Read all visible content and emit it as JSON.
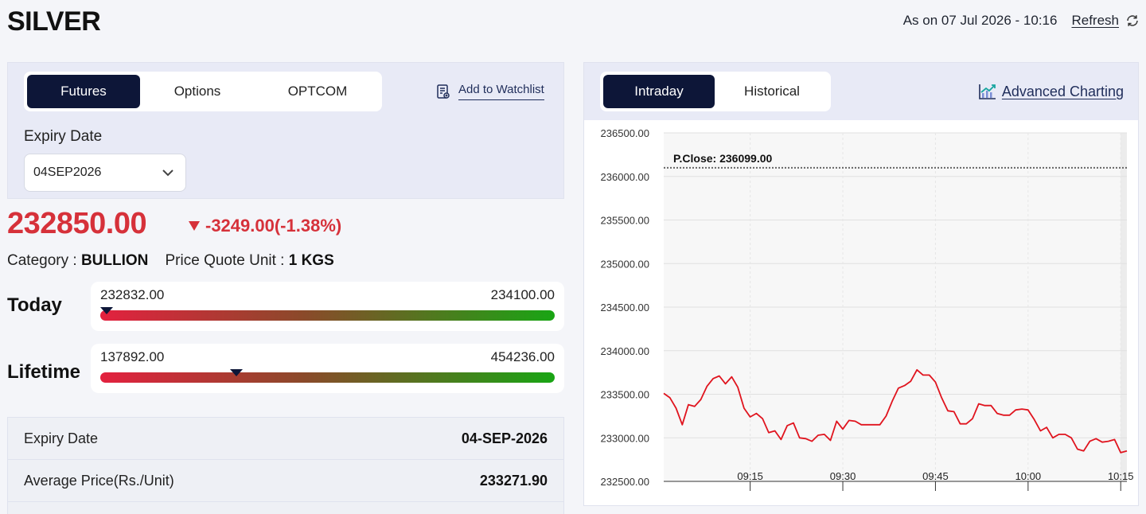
{
  "header": {
    "title": "SILVER",
    "as_on": "As on 07 Jul 2026 - 10:16",
    "refresh_label": "Refresh"
  },
  "contract": {
    "tabs": [
      {
        "label": "Futures",
        "active": true
      },
      {
        "label": "Options",
        "active": false
      },
      {
        "label": "OPTCOM",
        "active": false
      }
    ],
    "watchlist_label": "Add to Watchlist",
    "expiry_label": "Expiry Date",
    "expiry_value": "04SEP2026"
  },
  "quote": {
    "price": "232850.00",
    "change": "-3249.00(-1.38%)",
    "category_label": "Category :",
    "category_value": "BULLION",
    "unit_label": "Price Quote Unit :",
    "unit_value": "1 KGS"
  },
  "ranges": {
    "today": {
      "label": "Today",
      "low": "232832.00",
      "high": "234100.00",
      "position": 0.014
    },
    "lifetime": {
      "label": "Lifetime",
      "low": "137892.00",
      "high": "454236.00",
      "position": 0.299
    }
  },
  "details": [
    {
      "label": "Expiry Date",
      "value": "04-SEP-2026"
    },
    {
      "label": "Average Price(Rs./Unit)",
      "value": "233271.90"
    }
  ],
  "chart_panel": {
    "tabs": [
      {
        "label": "Intraday",
        "active": true
      },
      {
        "label": "Historical",
        "active": false
      }
    ],
    "advanced_label": "Advanced Charting"
  },
  "colors": {
    "navy": "#0d1638",
    "red": "#d6313a",
    "green": "#19a514",
    "line": "#e0141e"
  },
  "chart_data": {
    "type": "line",
    "title": "",
    "xlabel": "",
    "ylabel": "",
    "ylim": [
      232500,
      236500
    ],
    "y_ticks": [
      "236500.00",
      "236000.00",
      "235500.00",
      "235000.00",
      "234500.00",
      "234000.00",
      "233500.00",
      "233000.00",
      "232500.00"
    ],
    "x_ticks": [
      {
        "label": "09:15",
        "t": 15
      },
      {
        "label": "09:30",
        "t": 30
      },
      {
        "label": "09:45",
        "t": 45
      },
      {
        "label": "10:00",
        "t": 60
      },
      {
        "label": "10:15",
        "t": 75
      }
    ],
    "reference": {
      "label": "P.Close: 236099.00",
      "value": 236099
    },
    "x_start": "09:01",
    "x_end": "10:16",
    "series": [
      {
        "x": [
          "09:01",
          "09:02",
          "09:03",
          "09:04",
          "09:05",
          "09:06",
          "09:07",
          "09:08",
          "09:09",
          "09:10",
          "09:11",
          "09:12",
          "09:13",
          "09:14",
          "09:15",
          "09:16",
          "09:17",
          "09:18",
          "09:19",
          "09:20",
          "09:21",
          "09:22",
          "09:23",
          "09:24",
          "09:25",
          "09:26",
          "09:27",
          "09:28",
          "09:29",
          "09:30",
          "09:31",
          "09:32",
          "09:33",
          "09:34",
          "09:35",
          "09:36",
          "09:37",
          "09:38",
          "09:39",
          "09:40",
          "09:41",
          "09:42",
          "09:43",
          "09:44",
          "09:45",
          "09:46",
          "09:47",
          "09:48",
          "09:49",
          "09:50",
          "09:51",
          "09:52",
          "09:53",
          "09:54",
          "09:55",
          "09:56",
          "09:57",
          "09:58",
          "09:59",
          "10:00",
          "10:01",
          "10:02",
          "10:03",
          "10:04",
          "10:05",
          "10:06",
          "10:07",
          "10:08",
          "10:09",
          "10:10",
          "10:11",
          "10:12",
          "10:13",
          "10:14",
          "10:15",
          "10:16"
        ],
        "values": [
          233510,
          233460,
          233340,
          233150,
          233380,
          233360,
          233440,
          233590,
          233680,
          233710,
          233620,
          233700,
          233580,
          233340,
          233240,
          233280,
          233220,
          233060,
          233080,
          232980,
          233140,
          233170,
          233000,
          232990,
          232960,
          233030,
          233040,
          232970,
          233190,
          233100,
          233200,
          233190,
          233150,
          233150,
          233150,
          233150,
          233250,
          233420,
          233570,
          233600,
          233650,
          233780,
          233720,
          233720,
          233640,
          233460,
          233310,
          233300,
          233160,
          233160,
          233220,
          233390,
          233370,
          233370,
          233280,
          233260,
          233260,
          233320,
          233330,
          233320,
          233210,
          233080,
          233120,
          233000,
          233040,
          233040,
          233000,
          232870,
          232850,
          232960,
          232990,
          232950,
          232960,
          232980,
          232830,
          232850
        ]
      }
    ]
  }
}
